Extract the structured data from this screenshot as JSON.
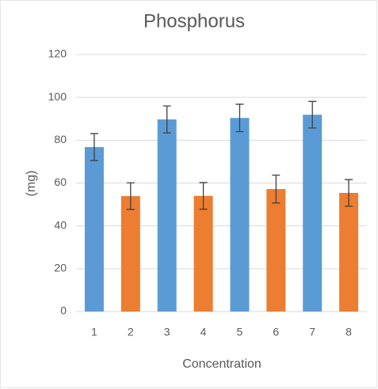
{
  "chart_data": {
    "type": "bar",
    "title": "Phosphorus",
    "xlabel": "Concentration",
    "ylabel": "(mg)",
    "categories": [
      "1",
      "2",
      "3",
      "4",
      "5",
      "6",
      "7",
      "8"
    ],
    "values": [
      76.8,
      53.9,
      89.7,
      54,
      90.4,
      57.2,
      91.9,
      55.4
    ],
    "errors": [
      6.3,
      6.2,
      6.3,
      6.2,
      6.4,
      6.5,
      6.2,
      6.2
    ],
    "colors": [
      "#5b9bd5",
      "#ed7d31",
      "#5b9bd5",
      "#ed7d31",
      "#5b9bd5",
      "#ed7d31",
      "#5b9bd5",
      "#ed7d31"
    ],
    "ylim": [
      0,
      120
    ],
    "yticks": [
      0,
      20,
      40,
      60,
      80,
      100,
      120
    ],
    "grid": true
  }
}
